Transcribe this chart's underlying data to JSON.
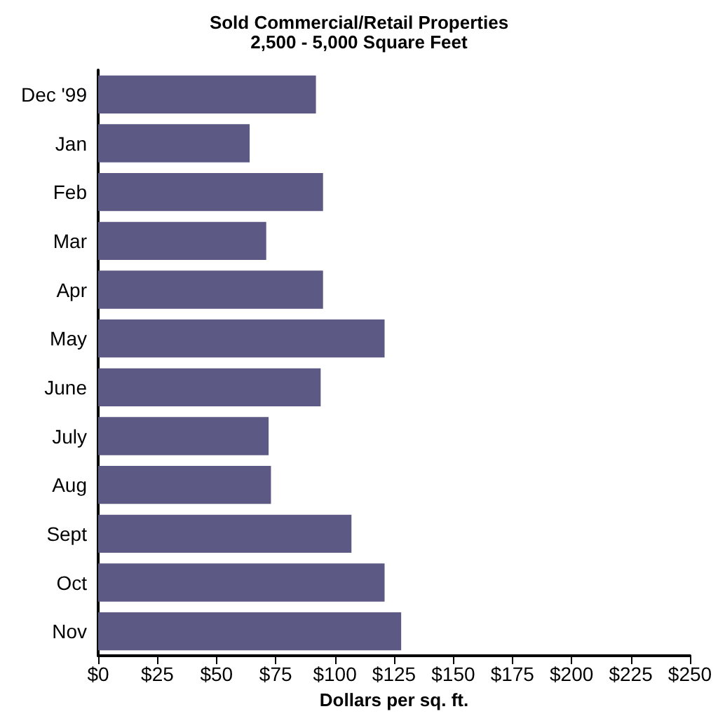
{
  "chart_data": {
    "type": "bar",
    "orientation": "horizontal",
    "title": "Sold Commercial/Retail Properties\n2,500 - 5,000 Square Feet",
    "xlabel": "Dollars per sq. ft.",
    "categories": [
      "Dec '99",
      "Jan",
      "Feb",
      "Mar",
      "Apr",
      "May",
      "June",
      "July",
      "Aug",
      "Sept",
      "Oct",
      "Nov"
    ],
    "values": [
      92,
      64,
      95,
      71,
      95,
      121,
      94,
      72,
      73,
      107,
      121,
      128
    ],
    "color": "#5c5a84",
    "xlim": [
      0,
      250
    ],
    "xticks": [
      {
        "value": 0,
        "label": "$0"
      },
      {
        "value": 25,
        "label": "$25"
      },
      {
        "value": 50,
        "label": "$50"
      },
      {
        "value": 75,
        "label": "$75"
      },
      {
        "value": 100,
        "label": "$100"
      },
      {
        "value": 125,
        "label": "$125"
      },
      {
        "value": 150,
        "label": "$150"
      },
      {
        "value": 175,
        "label": "$175"
      },
      {
        "value": 200,
        "label": "$200"
      },
      {
        "value": 225,
        "label": "$225"
      },
      {
        "value": 250,
        "label": "$250"
      }
    ],
    "grid": false
  }
}
